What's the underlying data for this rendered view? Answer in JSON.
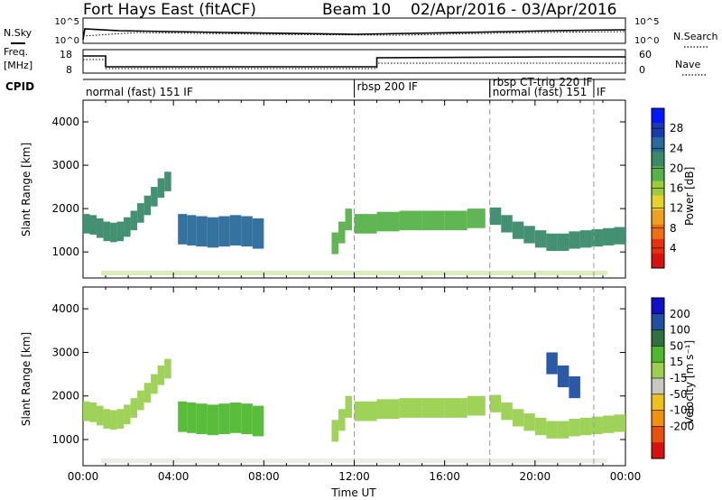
{
  "header": {
    "title": "Fort Hays East (fitACF)",
    "beam": "Beam 10",
    "dates": "02/Apr/2016 - 03/Apr/2016"
  },
  "noise_panel": {
    "left_label": "N.Sky",
    "right_label": "N.Search",
    "ticks_left": [
      "10^5",
      "10^0"
    ],
    "ticks_right": [
      "10^5",
      "10^0"
    ]
  },
  "freq_panel": {
    "left_label_1": "Freq.",
    "left_label_2": "[MHz]",
    "ticks_left": [
      "18",
      "8"
    ],
    "ticks_right": [
      "60",
      "0"
    ],
    "right_label": "Nave"
  },
  "cpid_panel": {
    "label": "CPID",
    "modes": [
      {
        "text": "normal (fast) 151 IF",
        "start_h": 0.0
      },
      {
        "text": "rbsp 200 IF",
        "start_h": 12.0
      },
      {
        "text": "rbsp CT-trig 220 IF",
        "start_h": 18.0
      },
      {
        "text": "normal (fast) 151",
        "start_h": 18.0
      },
      {
        "text": "IF",
        "start_h": 22.6
      }
    ]
  },
  "chart_data": [
    {
      "type": "heatmap",
      "title": "",
      "xlabel": "Time UT",
      "ylabel": "Slant Range [km]",
      "ylim": [
        400,
        4500
      ],
      "y_ticks": [
        1000,
        2000,
        3000,
        4000
      ],
      "colorbar_label": "Power [dB]",
      "colorbar_ticks": [
        4,
        8,
        12,
        16,
        20,
        24,
        28
      ],
      "colorbar_range": [
        0,
        32
      ],
      "colorbar_colors": [
        "#0018ff",
        "#1a3ab0",
        "#2a6a9a",
        "#3a8a6a",
        "#56b24a",
        "#9ccc3a",
        "#e6d22a",
        "#f0a020",
        "#ee7010",
        "#e83010",
        "#d81010"
      ],
      "vertical_dashed_h": [
        12.0,
        18.0,
        22.6
      ],
      "bands": [
        {
          "x": [
            0.0,
            0.3,
            0.6,
            0.9,
            1.2,
            1.5,
            1.8,
            2.1,
            2.4,
            2.7,
            3.0,
            3.3,
            3.6,
            3.9
          ],
          "y": [
            1650,
            1650,
            1600,
            1500,
            1450,
            1450,
            1500,
            1650,
            1800,
            2000,
            2150,
            2400,
            2550,
            2700
          ],
          "h": 450,
          "v": 22
        },
        {
          "x": [
            4.2,
            4.6,
            5.0,
            5.5,
            6.0,
            6.5,
            7.0,
            7.5,
            8.0
          ],
          "y": [
            1550,
            1500,
            1500,
            1450,
            1450,
            1500,
            1500,
            1450,
            1400
          ],
          "h": 700,
          "v": 25
        },
        {
          "x": [
            11.0,
            11.3,
            11.6,
            11.9
          ],
          "y": [
            1100,
            1300,
            1600,
            1900
          ],
          "h": 500,
          "v": 18
        },
        {
          "x": [
            12.0,
            13.0,
            14.0,
            15.0,
            16.0,
            17.0,
            17.8
          ],
          "y": [
            1600,
            1700,
            1700,
            1750,
            1700,
            1750,
            1800
          ],
          "h": 450,
          "v": 18
        },
        {
          "x": [
            18.0,
            18.5,
            19.0,
            19.5,
            20.0,
            20.5,
            21.0,
            21.5,
            22.0,
            22.5,
            23.0,
            23.5,
            24.0
          ],
          "y": [
            1900,
            1750,
            1550,
            1450,
            1350,
            1250,
            1200,
            1250,
            1300,
            1300,
            1350,
            1350,
            1400
          ],
          "h": 400,
          "v": 22
        }
      ]
    },
    {
      "type": "heatmap",
      "title": "",
      "xlabel": "Time UT",
      "ylabel": "Slant Range [km]",
      "ylim": [
        400,
        4500
      ],
      "y_ticks": [
        1000,
        2000,
        3000,
        4000
      ],
      "x_tick_labels": [
        "00:00",
        "04:00",
        "08:00",
        "12:00",
        "16:00",
        "20:00",
        "00:00"
      ],
      "colorbar_label": "Velocity [m s⁻¹]",
      "colorbar_ticks": [
        200,
        100,
        50,
        15,
        -15,
        -50,
        -100,
        -200
      ],
      "colorbar_colors": [
        "#1010c8",
        "#2050a0",
        "#307040",
        "#50b830",
        "#9ad050",
        "#c8c8c0",
        "#f0c020",
        "#f09010",
        "#e85010",
        "#d81010"
      ],
      "vertical_dashed_h": [
        12.0,
        18.0,
        22.6
      ],
      "bands": [
        {
          "x": [
            0.0,
            0.3,
            0.6,
            0.9,
            1.2,
            1.5,
            1.8,
            2.1,
            2.4,
            2.7,
            3.0,
            3.3,
            3.6,
            3.9
          ],
          "y": [
            1650,
            1650,
            1600,
            1500,
            1450,
            1450,
            1500,
            1650,
            1800,
            2000,
            2150,
            2400,
            2550,
            2700
          ],
          "h": 450,
          "v": 0
        },
        {
          "x": [
            4.2,
            4.6,
            5.0,
            5.5,
            6.0,
            6.5,
            7.0,
            7.5,
            8.0
          ],
          "y": [
            1550,
            1500,
            1500,
            1450,
            1450,
            1500,
            1500,
            1450,
            1400
          ],
          "h": 700,
          "v": 30
        },
        {
          "x": [
            11.0,
            11.3,
            11.6,
            11.9
          ],
          "y": [
            1100,
            1300,
            1600,
            1900
          ],
          "h": 500,
          "v": 0
        },
        {
          "x": [
            12.0,
            13.0,
            14.0,
            15.0,
            16.0,
            17.0,
            17.8
          ],
          "y": [
            1600,
            1700,
            1700,
            1750,
            1700,
            1750,
            1800
          ],
          "h": 450,
          "v": 0
        },
        {
          "x": [
            18.0,
            18.5,
            19.0,
            19.5,
            20.0,
            20.5,
            21.0,
            21.5,
            22.0,
            22.5,
            23.0,
            23.5,
            24.0
          ],
          "y": [
            1900,
            1750,
            1550,
            1450,
            1350,
            1250,
            1200,
            1250,
            1300,
            1300,
            1350,
            1350,
            1400
          ],
          "h": 400,
          "v": 0
        },
        {
          "x": [
            20.5,
            21.0,
            21.5,
            22.0
          ],
          "y": [
            2900,
            2600,
            2300,
            2100
          ],
          "h": 500,
          "v": 150
        }
      ]
    }
  ]
}
